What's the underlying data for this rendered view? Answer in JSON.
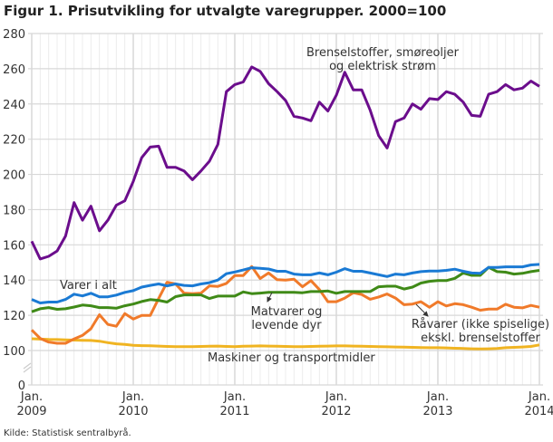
{
  "chart_data": {
    "type": "line",
    "title": "Figur 1. Prisutvikling for utvalgte varegrupper. 2000=100",
    "xlabel": "",
    "ylabel": "",
    "ylim": [
      0,
      280
    ],
    "y_axis_break": "between 0 and 100",
    "yticks": [
      0,
      100,
      120,
      140,
      160,
      180,
      200,
      220,
      240,
      260,
      280
    ],
    "xtick_labels": [
      [
        "Jan.",
        "2009"
      ],
      [
        "Jan.",
        "2010"
      ],
      [
        "Jan.",
        "2011"
      ],
      [
        "Jan.",
        "2012"
      ],
      [
        "Jan.",
        "2013"
      ],
      [
        "Jan.",
        "2014"
      ]
    ],
    "grid": true,
    "legend": "inline labels",
    "x": [
      "2009-01",
      "2009-02",
      "2009-03",
      "2009-04",
      "2009-05",
      "2009-06",
      "2009-07",
      "2009-08",
      "2009-09",
      "2009-10",
      "2009-11",
      "2009-12",
      "2010-01",
      "2010-02",
      "2010-03",
      "2010-04",
      "2010-05",
      "2010-06",
      "2010-07",
      "2010-08",
      "2010-09",
      "2010-10",
      "2010-11",
      "2010-12",
      "2011-01",
      "2011-02",
      "2011-03",
      "2011-04",
      "2011-05",
      "2011-06",
      "2011-07",
      "2011-08",
      "2011-09",
      "2011-10",
      "2011-11",
      "2011-12",
      "2012-01",
      "2012-02",
      "2012-03",
      "2012-04",
      "2012-05",
      "2012-06",
      "2012-07",
      "2012-08",
      "2012-09",
      "2012-10",
      "2012-11",
      "2012-12",
      "2013-01",
      "2013-02",
      "2013-03",
      "2013-04",
      "2013-05",
      "2013-06",
      "2013-07",
      "2013-08",
      "2013-09",
      "2013-10",
      "2013-11",
      "2013-12",
      "2014-01"
    ],
    "series": [
      {
        "name": "Brenselstoffer, smøreoljer og elektrisk strøm",
        "label_lines": [
          "Brenselstoffer, smøreoljer",
          "og elektrisk strøm"
        ],
        "color": "#6b0d8c",
        "values": [
          162,
          152,
          153.5,
          156.5,
          165,
          184,
          174,
          182,
          168,
          174,
          182.5,
          185,
          196,
          209.5,
          215.5,
          216,
          204,
          204,
          202,
          197,
          202,
          207.5,
          217,
          247,
          251,
          252.5,
          261,
          258.5,
          251.5,
          247,
          242,
          233,
          232,
          230.5,
          241,
          236,
          245,
          258,
          248,
          248,
          236.5,
          222,
          215,
          230,
          232,
          240,
          237,
          243,
          242.5,
          247,
          245.5,
          241,
          233.5,
          233,
          245.5,
          247,
          251,
          248,
          249,
          253,
          250
        ]
      },
      {
        "name": "Varer i alt",
        "label_lines": [
          "Varer i alt"
        ],
        "color": "#1a7ad4",
        "values": [
          129,
          127,
          127.5,
          127.5,
          129,
          132,
          131,
          132.5,
          130.5,
          130.5,
          131.5,
          133,
          134,
          136,
          137,
          137.8,
          136.7,
          137.8,
          137,
          136.7,
          137.8,
          138.5,
          140,
          143.6,
          144.6,
          145.7,
          147,
          146.7,
          146.3,
          145,
          145,
          143.4,
          143,
          143,
          144,
          143,
          144.5,
          146.5,
          145,
          145,
          144,
          143,
          142,
          143.4,
          143,
          144,
          144.8,
          145.1,
          145.1,
          145.5,
          146.2,
          145,
          144,
          143.8,
          147.2,
          147.2,
          147.5,
          147.5,
          147.5,
          148.6,
          148.9
        ]
      },
      {
        "name": "Matvarer og levende dyr",
        "label_lines": [
          "Matvarer og",
          "levende dyr"
        ],
        "color": "#3f8a17",
        "values": [
          122,
          123.7,
          124.4,
          123.4,
          123.7,
          124.7,
          125.8,
          125.4,
          124.4,
          124.4,
          124,
          125.4,
          126.4,
          127.8,
          128.9,
          128.5,
          127.5,
          130.6,
          131.6,
          131.6,
          131.6,
          129.5,
          130.9,
          130.9,
          130.9,
          133.3,
          132.3,
          132.6,
          133,
          133,
          133,
          133,
          132.8,
          133.5,
          133.5,
          133.8,
          132.5,
          133.5,
          133.5,
          133.5,
          133.5,
          136.2,
          136.5,
          136.5,
          134.9,
          136,
          138.3,
          139.3,
          139.7,
          139.7,
          141,
          144,
          142.7,
          142.7,
          147.2,
          144.8,
          144.5,
          143.4,
          143.8,
          144.8,
          145.5
        ]
      },
      {
        "name": "Råvarer (ikke spiselige) ekskl. brenselstoffer",
        "label_lines": [
          "Råvarer (ikke spiselige)",
          "ekskl. brenselstoffer"
        ],
        "color": "#f07a2a",
        "values": [
          111.7,
          106.9,
          104.8,
          104.1,
          104.1,
          106.6,
          108.6,
          112.4,
          120.3,
          114.8,
          113.8,
          121,
          117.9,
          119.9,
          119.9,
          129.5,
          138.8,
          137.8,
          132.6,
          132.3,
          132.6,
          136.7,
          136.4,
          138.1,
          142.6,
          142.6,
          147.7,
          140.9,
          144,
          140.2,
          140,
          140.5,
          136.2,
          139.7,
          134.6,
          127.7,
          127.7,
          129.8,
          132.8,
          131.8,
          129.1,
          130.4,
          132.1,
          129.8,
          126,
          126.4,
          127.7,
          124.6,
          127.7,
          125.3,
          126.6,
          126,
          124.6,
          122.9,
          123.5,
          123.5,
          126.3,
          124.6,
          124.2,
          125.6,
          124.6
        ]
      },
      {
        "name": "Maskiner og transportmidler",
        "label_lines": [
          "Maskiner og transportmidler"
        ],
        "color": "#f0b422",
        "values": [
          106.7,
          106.5,
          106.3,
          106.2,
          106,
          105.9,
          105.8,
          105.7,
          105.3,
          104.5,
          103.8,
          103.5,
          103,
          102.8,
          102.7,
          102.5,
          102.3,
          102.2,
          102.2,
          102.2,
          102.3,
          102.4,
          102.5,
          102.3,
          102.2,
          102.4,
          102.5,
          102.6,
          102.5,
          102.4,
          102.3,
          102.2,
          102.2,
          102.3,
          102.4,
          102.5,
          102.6,
          102.6,
          102.5,
          102.4,
          102.3,
          102.2,
          102.1,
          102,
          101.9,
          101.8,
          101.7,
          101.6,
          101.6,
          101.5,
          101.3,
          101.2,
          101,
          100.9,
          101,
          101.2,
          101.6,
          101.8,
          102,
          102.3,
          103.2
        ]
      }
    ]
  },
  "source": "Kilde: Statistisk sentralbyrå."
}
